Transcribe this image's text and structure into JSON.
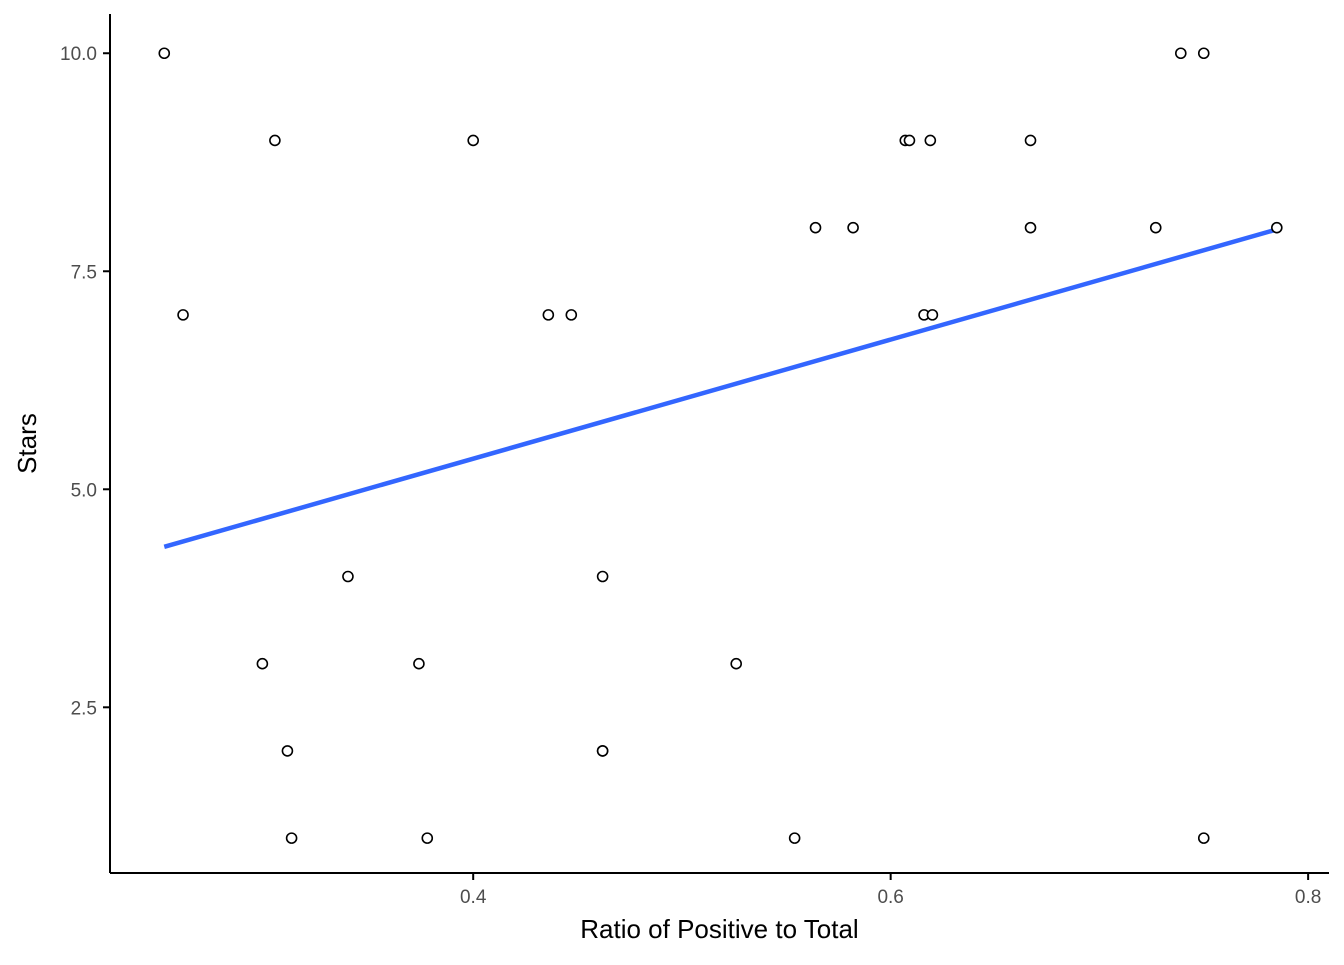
{
  "chart_data": {
    "type": "scatter",
    "title": "",
    "xlabel": "Ratio of Positive to Total",
    "ylabel": "Stars",
    "xlim": [
      0.226,
      0.81
    ],
    "ylim": [
      0.6,
      10.45
    ],
    "xticks": [
      0.4,
      0.6,
      0.8
    ],
    "xtick_labels": [
      "0.4",
      "0.6",
      "0.8"
    ],
    "yticks": [
      2.5,
      5.0,
      7.5,
      10.0
    ],
    "ytick_labels": [
      "2.5",
      "5.0",
      "7.5",
      "10.0"
    ],
    "grid": false,
    "legend": "none",
    "points": {
      "x": [
        0.252,
        0.261,
        0.299,
        0.305,
        0.311,
        0.313,
        0.34,
        0.374,
        0.378,
        0.4,
        0.436,
        0.447,
        0.462,
        0.462,
        0.462,
        0.526,
        0.554,
        0.564,
        0.582,
        0.607,
        0.609,
        0.616,
        0.619,
        0.62,
        0.667,
        0.667,
        0.727,
        0.739,
        0.75,
        0.75,
        0.785
      ],
      "y": [
        10,
        7,
        3,
        9,
        2,
        1,
        4,
        3,
        1,
        9,
        7,
        7,
        4,
        2,
        2,
        3,
        1,
        8,
        8,
        9,
        9,
        7,
        9,
        7,
        9,
        8,
        8,
        10,
        10,
        1,
        8
      ]
    },
    "fit_line": {
      "method": "linear",
      "x": [
        0.252,
        0.785
      ],
      "y": [
        4.34,
        7.98
      ]
    },
    "colors": {
      "points_stroke": "#000000",
      "points_fill": "#ffffff",
      "fit_line": "#3366ff",
      "axis": "#000000",
      "tick_label": "#4d4d4d"
    }
  }
}
